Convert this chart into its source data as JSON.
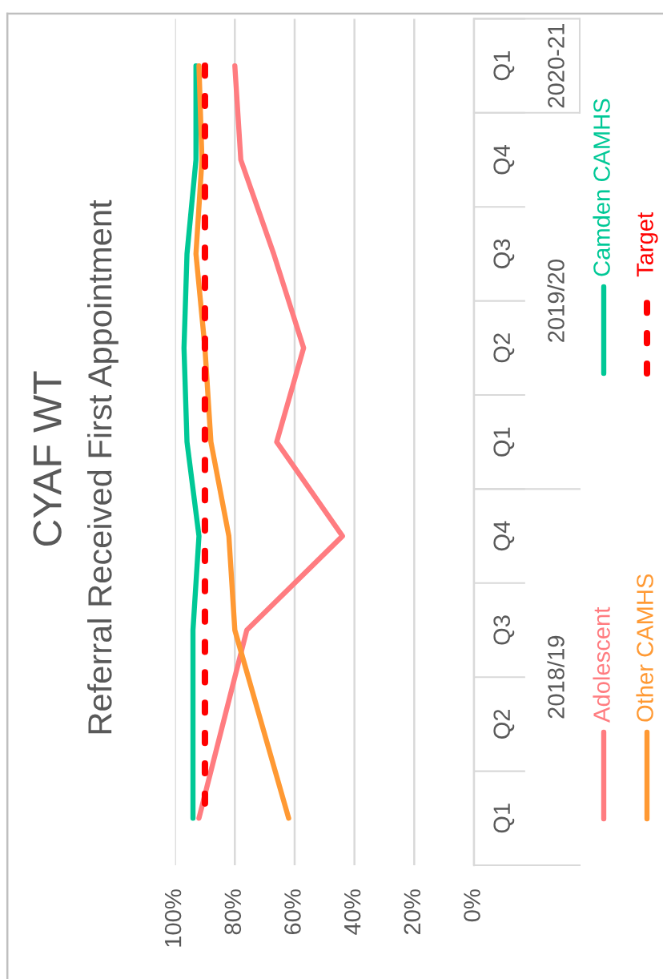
{
  "chart_data": {
    "type": "line",
    "orientation": "horizontal",
    "title": "CYAF WT",
    "subtitle": "Referral Received First Appointment",
    "categories": [
      "Q1",
      "Q4",
      "Q3",
      "Q2",
      "Q1",
      "Q4",
      "Q3",
      "Q2",
      "Q1"
    ],
    "series": [
      {
        "name": "Adolescent",
        "color": "#ff7c80",
        "values": [
          80,
          78,
          67,
          57,
          66,
          44,
          76,
          84,
          92
        ]
      },
      {
        "name": "Camden CAMHS",
        "color": "#00c896",
        "values": [
          93,
          93,
          96,
          97,
          96,
          92,
          94,
          94,
          94
        ]
      },
      {
        "name": "Other CAMHS",
        "color": "#ff9933",
        "values": [
          92,
          91,
          93,
          90,
          88,
          82,
          80,
          71,
          62
        ]
      },
      {
        "name": "Target",
        "color": "#ff0000",
        "line_style": "dashed",
        "values": [
          90,
          90,
          90,
          90,
          90,
          90,
          90,
          90,
          90
        ]
      }
    ],
    "xlim": [
      100,
      0
    ],
    "xticks": [
      {
        "value": 100,
        "label": "100%"
      },
      {
        "value": 80,
        "label": "80%"
      },
      {
        "value": 60,
        "label": "60%"
      },
      {
        "value": 40,
        "label": "40%"
      },
      {
        "value": 20,
        "label": "20%"
      },
      {
        "value": 0,
        "label": "0%"
      }
    ],
    "grid": "x",
    "legend": "right",
    "line_style": "solid",
    "annotations": [
      "2020-21",
      "2019/20",
      "2018/19"
    ]
  }
}
